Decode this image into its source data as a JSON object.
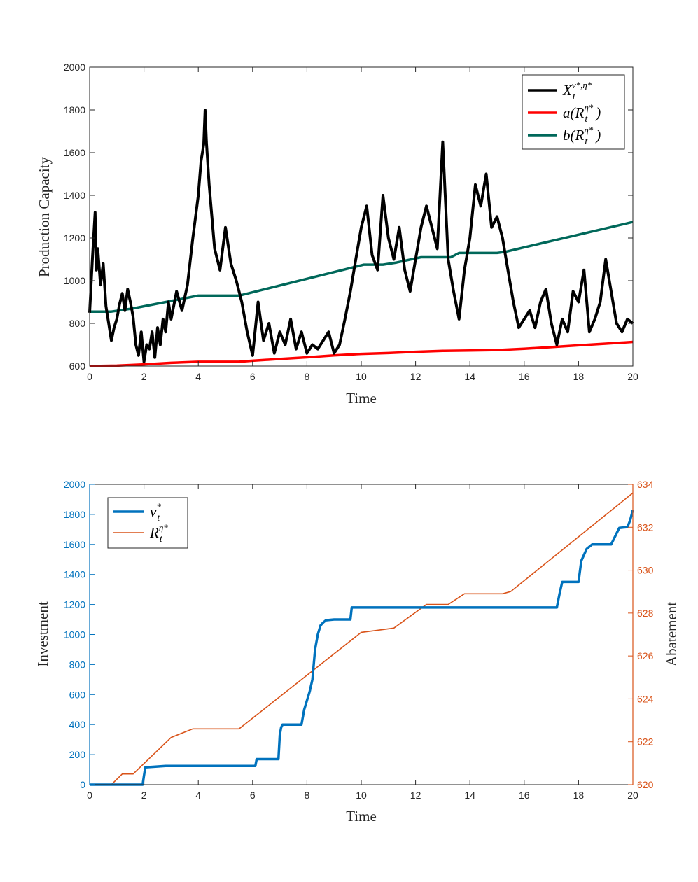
{
  "chart_data": [
    {
      "type": "line",
      "xlabel": "Time",
      "ylabel": "Production Capacity",
      "xlim": [
        0,
        20
      ],
      "ylim": [
        600,
        2000
      ],
      "xticks": [
        "0",
        "2",
        "4",
        "6",
        "8",
        "10",
        "12",
        "14",
        "16",
        "18",
        "20"
      ],
      "yticks": [
        "600",
        "800",
        "1000",
        "1200",
        "1400",
        "1600",
        "1800",
        "2000"
      ],
      "legend_position": "top-right",
      "series": [
        {
          "name": "X_t^{ν*,η*}",
          "legend": {
            "base": "X",
            "sup": "ν*,η*",
            "sub": "t"
          },
          "color": "#000000",
          "x": [
            0,
            0.1,
            0.2,
            0.25,
            0.3,
            0.4,
            0.5,
            0.6,
            0.7,
            0.8,
            0.9,
            1.0,
            1.1,
            1.2,
            1.3,
            1.4,
            1.5,
            1.6,
            1.7,
            1.8,
            1.9,
            2.0,
            2.1,
            2.2,
            2.3,
            2.4,
            2.5,
            2.6,
            2.7,
            2.8,
            2.9,
            3.0,
            3.2,
            3.4,
            3.6,
            3.8,
            4.0,
            4.1,
            4.2,
            4.25,
            4.3,
            4.4,
            4.5,
            4.6,
            4.8,
            5.0,
            5.2,
            5.4,
            5.6,
            5.8,
            6.0,
            6.2,
            6.4,
            6.6,
            6.8,
            7.0,
            7.2,
            7.4,
            7.6,
            7.8,
            8.0,
            8.2,
            8.4,
            8.6,
            8.8,
            9.0,
            9.2,
            9.4,
            9.6,
            9.8,
            10.0,
            10.2,
            10.4,
            10.6,
            10.8,
            11.0,
            11.2,
            11.4,
            11.6,
            11.8,
            12.0,
            12.2,
            12.4,
            12.6,
            12.8,
            13.0,
            13.2,
            13.4,
            13.6,
            13.8,
            14.0,
            14.2,
            14.4,
            14.6,
            14.8,
            15.0,
            15.2,
            15.4,
            15.6,
            15.8,
            16.0,
            16.2,
            16.4,
            16.6,
            16.8,
            17.0,
            17.2,
            17.4,
            17.6,
            17.8,
            18.0,
            18.2,
            18.4,
            18.6,
            18.8,
            19.0,
            19.2,
            19.4,
            19.6,
            19.8,
            20.0
          ],
          "y": [
            850,
            1100,
            1320,
            1050,
            1150,
            980,
            1080,
            880,
            800,
            720,
            780,
            820,
            890,
            940,
            860,
            960,
            900,
            830,
            700,
            650,
            760,
            620,
            700,
            680,
            760,
            640,
            780,
            700,
            820,
            760,
            900,
            820,
            950,
            860,
            980,
            1200,
            1400,
            1560,
            1640,
            1800,
            1650,
            1450,
            1300,
            1150,
            1050,
            1250,
            1080,
            1000,
            900,
            760,
            650,
            900,
            720,
            800,
            660,
            760,
            700,
            820,
            680,
            760,
            660,
            700,
            680,
            720,
            760,
            660,
            700,
            820,
            950,
            1100,
            1250,
            1350,
            1120,
            1050,
            1400,
            1200,
            1100,
            1250,
            1050,
            950,
            1100,
            1250,
            1350,
            1250,
            1150,
            1650,
            1100,
            950,
            820,
            1050,
            1200,
            1450,
            1350,
            1500,
            1250,
            1300,
            1200,
            1050,
            900,
            780,
            820,
            860,
            780,
            900,
            960,
            800,
            700,
            820,
            760,
            950,
            900,
            1050,
            760,
            820,
            900,
            1100,
            950,
            800,
            760,
            820,
            800
          ]
        },
        {
          "name": "a(R_t^{η*})",
          "legend": {
            "base": "a(R",
            "sup": "η*",
            "sub": "t",
            "tail": ")"
          },
          "color": "#ff0000",
          "x": [
            0,
            1,
            2,
            3,
            4,
            5,
            5.5,
            6,
            7,
            8,
            9,
            10,
            11,
            12,
            13,
            14,
            15,
            16,
            17,
            18,
            19,
            20
          ],
          "y": [
            600,
            602,
            608,
            615,
            620,
            620,
            620,
            625,
            633,
            641,
            650,
            657,
            661,
            667,
            671,
            673,
            675,
            681,
            689,
            697,
            705,
            713
          ]
        },
        {
          "name": "b(R_t^{η*})",
          "legend": {
            "base": "b(R",
            "sup": "η*",
            "sub": "t",
            "tail": ")"
          },
          "color": "#00685a",
          "x": [
            0,
            0.8,
            1.6,
            4.0,
            5.5,
            10.1,
            10.8,
            11.3,
            12.2,
            13.3,
            13.6,
            14.4,
            15.0,
            15.3,
            20.0
          ],
          "y": [
            855,
            855,
            870,
            930,
            930,
            1075,
            1075,
            1085,
            1110,
            1110,
            1130,
            1130,
            1130,
            1135,
            1275
          ]
        }
      ]
    },
    {
      "type": "line",
      "xlabel": "Time",
      "ylabel_left": "Investment",
      "ylabel_right": "Abatement",
      "xlim": [
        0,
        20
      ],
      "ylim_left": [
        0,
        2000
      ],
      "ylim_right": [
        620,
        634
      ],
      "xticks": [
        "0",
        "2",
        "4",
        "6",
        "8",
        "10",
        "12",
        "14",
        "16",
        "18",
        "20"
      ],
      "yticks_left": [
        "0",
        "200",
        "400",
        "600",
        "800",
        "1000",
        "1200",
        "1400",
        "1600",
        "1800",
        "2000"
      ],
      "yticks_right": [
        "620",
        "622",
        "624",
        "626",
        "628",
        "630",
        "632",
        "634"
      ],
      "left_axis_color": "#0072bd",
      "right_axis_color": "#d95319",
      "legend_position": "top-left",
      "series": [
        {
          "name": "ν_t^*",
          "legend": {
            "base": "ν",
            "sup": "*",
            "sub": "t"
          },
          "axis": "left",
          "color": "#0072bd",
          "x": [
            0,
            1.95,
            2.0,
            2.05,
            2.8,
            6.1,
            6.15,
            6.95,
            7.0,
            7.05,
            7.1,
            7.8,
            7.9,
            8.0,
            8.1,
            8.2,
            8.3,
            8.4,
            8.5,
            8.6,
            8.7,
            9.0,
            9.2,
            9.6,
            9.65,
            12.0,
            17.2,
            17.3,
            17.4,
            18.0,
            18.1,
            18.3,
            18.5,
            19.2,
            19.5,
            19.8,
            19.9,
            20.0
          ],
          "y": [
            0,
            0,
            60,
            115,
            125,
            125,
            170,
            170,
            330,
            380,
            400,
            400,
            500,
            560,
            620,
            700,
            900,
            1000,
            1060,
            1080,
            1095,
            1100,
            1100,
            1100,
            1180,
            1180,
            1180,
            1270,
            1350,
            1350,
            1490,
            1570,
            1600,
            1600,
            1710,
            1715,
            1760,
            1830
          ]
        },
        {
          "name": "R_t^{η*}",
          "legend": {
            "base": "R",
            "sup": "η*",
            "sub": "t"
          },
          "axis": "right",
          "color": "#d95319",
          "x": [
            0,
            0.8,
            1.2,
            1.6,
            3.0,
            3.8,
            5.5,
            10.0,
            10.6,
            11.2,
            12.4,
            13.2,
            13.8,
            15.2,
            15.5,
            20.0
          ],
          "y": [
            620,
            620,
            620.5,
            620.5,
            622.2,
            622.6,
            622.6,
            627.1,
            627.2,
            627.3,
            628.4,
            628.4,
            628.9,
            628.9,
            629.0,
            633.6
          ]
        }
      ]
    }
  ]
}
